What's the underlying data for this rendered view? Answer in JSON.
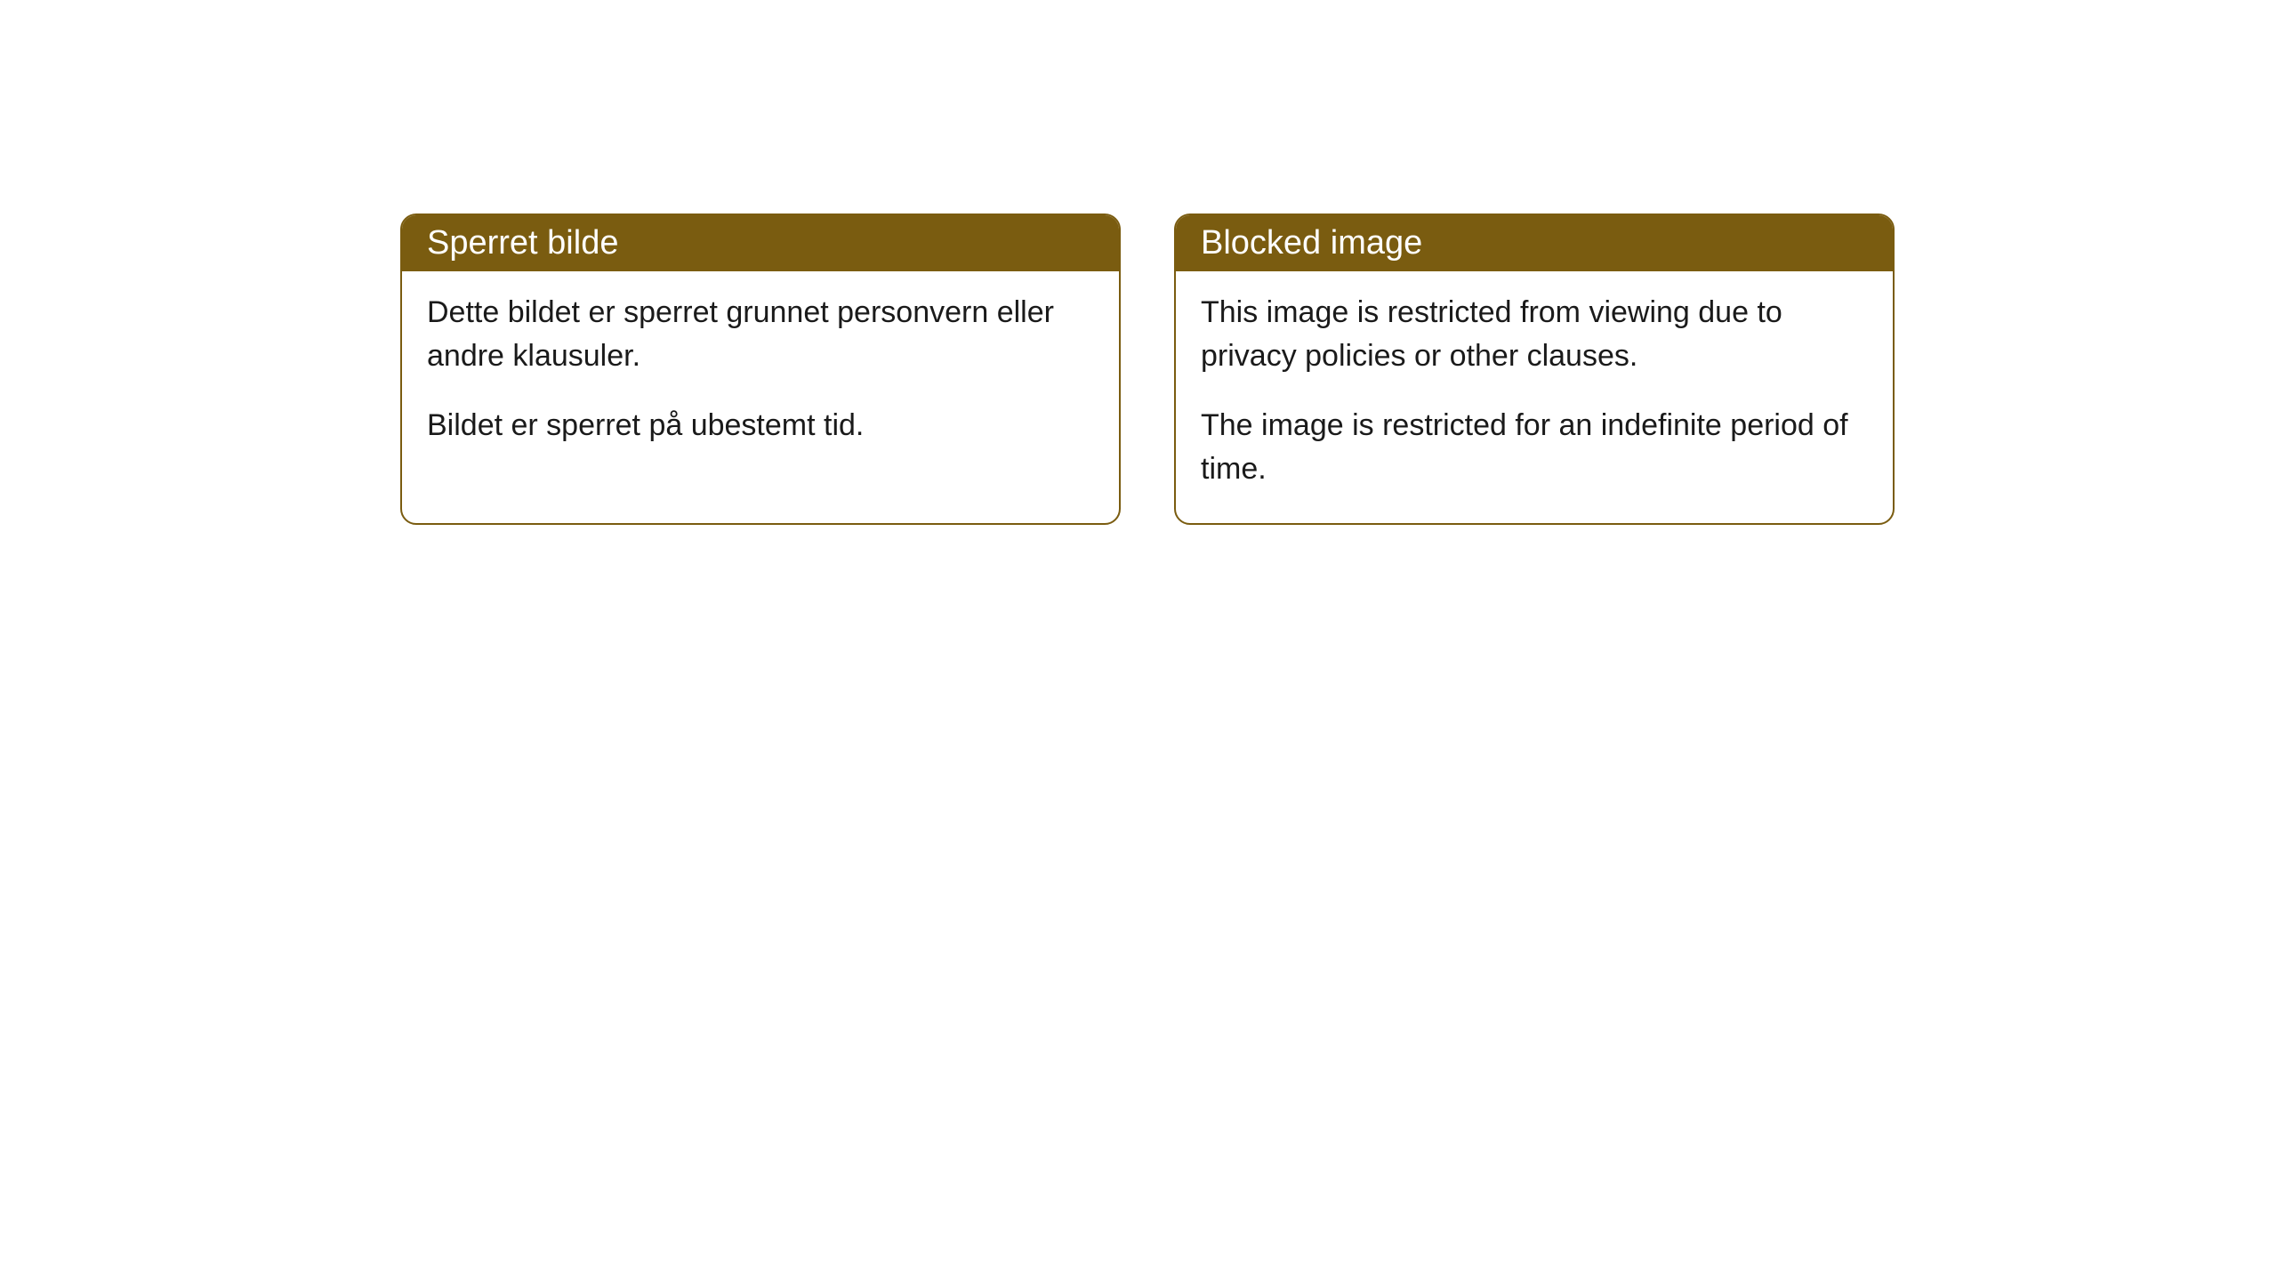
{
  "cards": [
    {
      "title": "Sperret bilde",
      "paragraph1": "Dette bildet er sperret grunnet personvern eller andre klausuler.",
      "paragraph2": "Bildet er sperret på ubestemt tid."
    },
    {
      "title": "Blocked image",
      "paragraph1": "This image is restricted from viewing due to privacy policies or other clauses.",
      "paragraph2": "The image is restricted for an indefinite period of time."
    }
  ],
  "styling": {
    "header_bg_color": "#7a5c10",
    "header_text_color": "#ffffff",
    "border_color": "#7a5c10",
    "body_bg_color": "#ffffff",
    "body_text_color": "#1a1a1a",
    "border_radius": 18,
    "header_fontsize": 38,
    "body_fontsize": 34
  }
}
